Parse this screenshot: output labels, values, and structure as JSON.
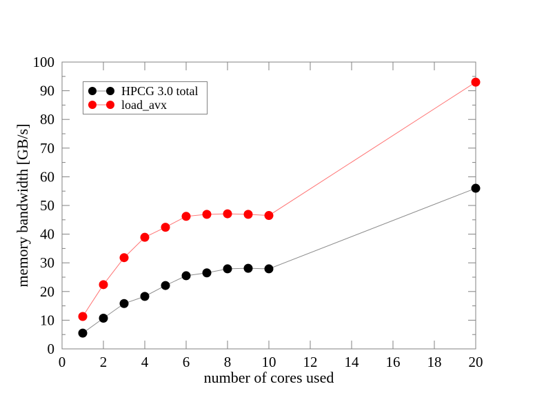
{
  "page": {
    "background": "#ffffff"
  },
  "chart_data": {
    "type": "line",
    "title": "",
    "xlabel": "number of cores used",
    "ylabel": "memory bandwidth [GB/s]",
    "xlim": [
      0,
      20
    ],
    "ylim": [
      0,
      100
    ],
    "x_ticks": [
      0,
      2,
      4,
      6,
      8,
      10,
      12,
      14,
      16,
      18,
      20
    ],
    "y_ticks": [
      0,
      10,
      20,
      30,
      40,
      50,
      60,
      70,
      80,
      90,
      100
    ],
    "y_minor_ticks": [
      5,
      15,
      25,
      35,
      45,
      55,
      65,
      75,
      85,
      95
    ],
    "grid": false,
    "axis_color": "#808080",
    "text_color": "#000000",
    "legend": {
      "position": "top-left",
      "frame": true
    },
    "x": [
      1,
      2,
      3,
      4,
      5,
      6,
      7,
      8,
      9,
      10,
      20
    ],
    "series": [
      {
        "name": "HPCG 3.0 total",
        "marker": "circle",
        "color": "#000000",
        "line_color": "#8c8c8c",
        "values": [
          5.5,
          10.7,
          15.8,
          18.3,
          22.1,
          25.5,
          26.5,
          27.9,
          28.1,
          27.9,
          56.0
        ]
      },
      {
        "name": "load_avx",
        "marker": "circle",
        "color": "#ff0000",
        "line_color": "#ff7373",
        "values": [
          11.3,
          22.4,
          31.8,
          38.9,
          42.4,
          46.2,
          46.9,
          47.1,
          46.9,
          46.5,
          93.0
        ]
      }
    ]
  }
}
